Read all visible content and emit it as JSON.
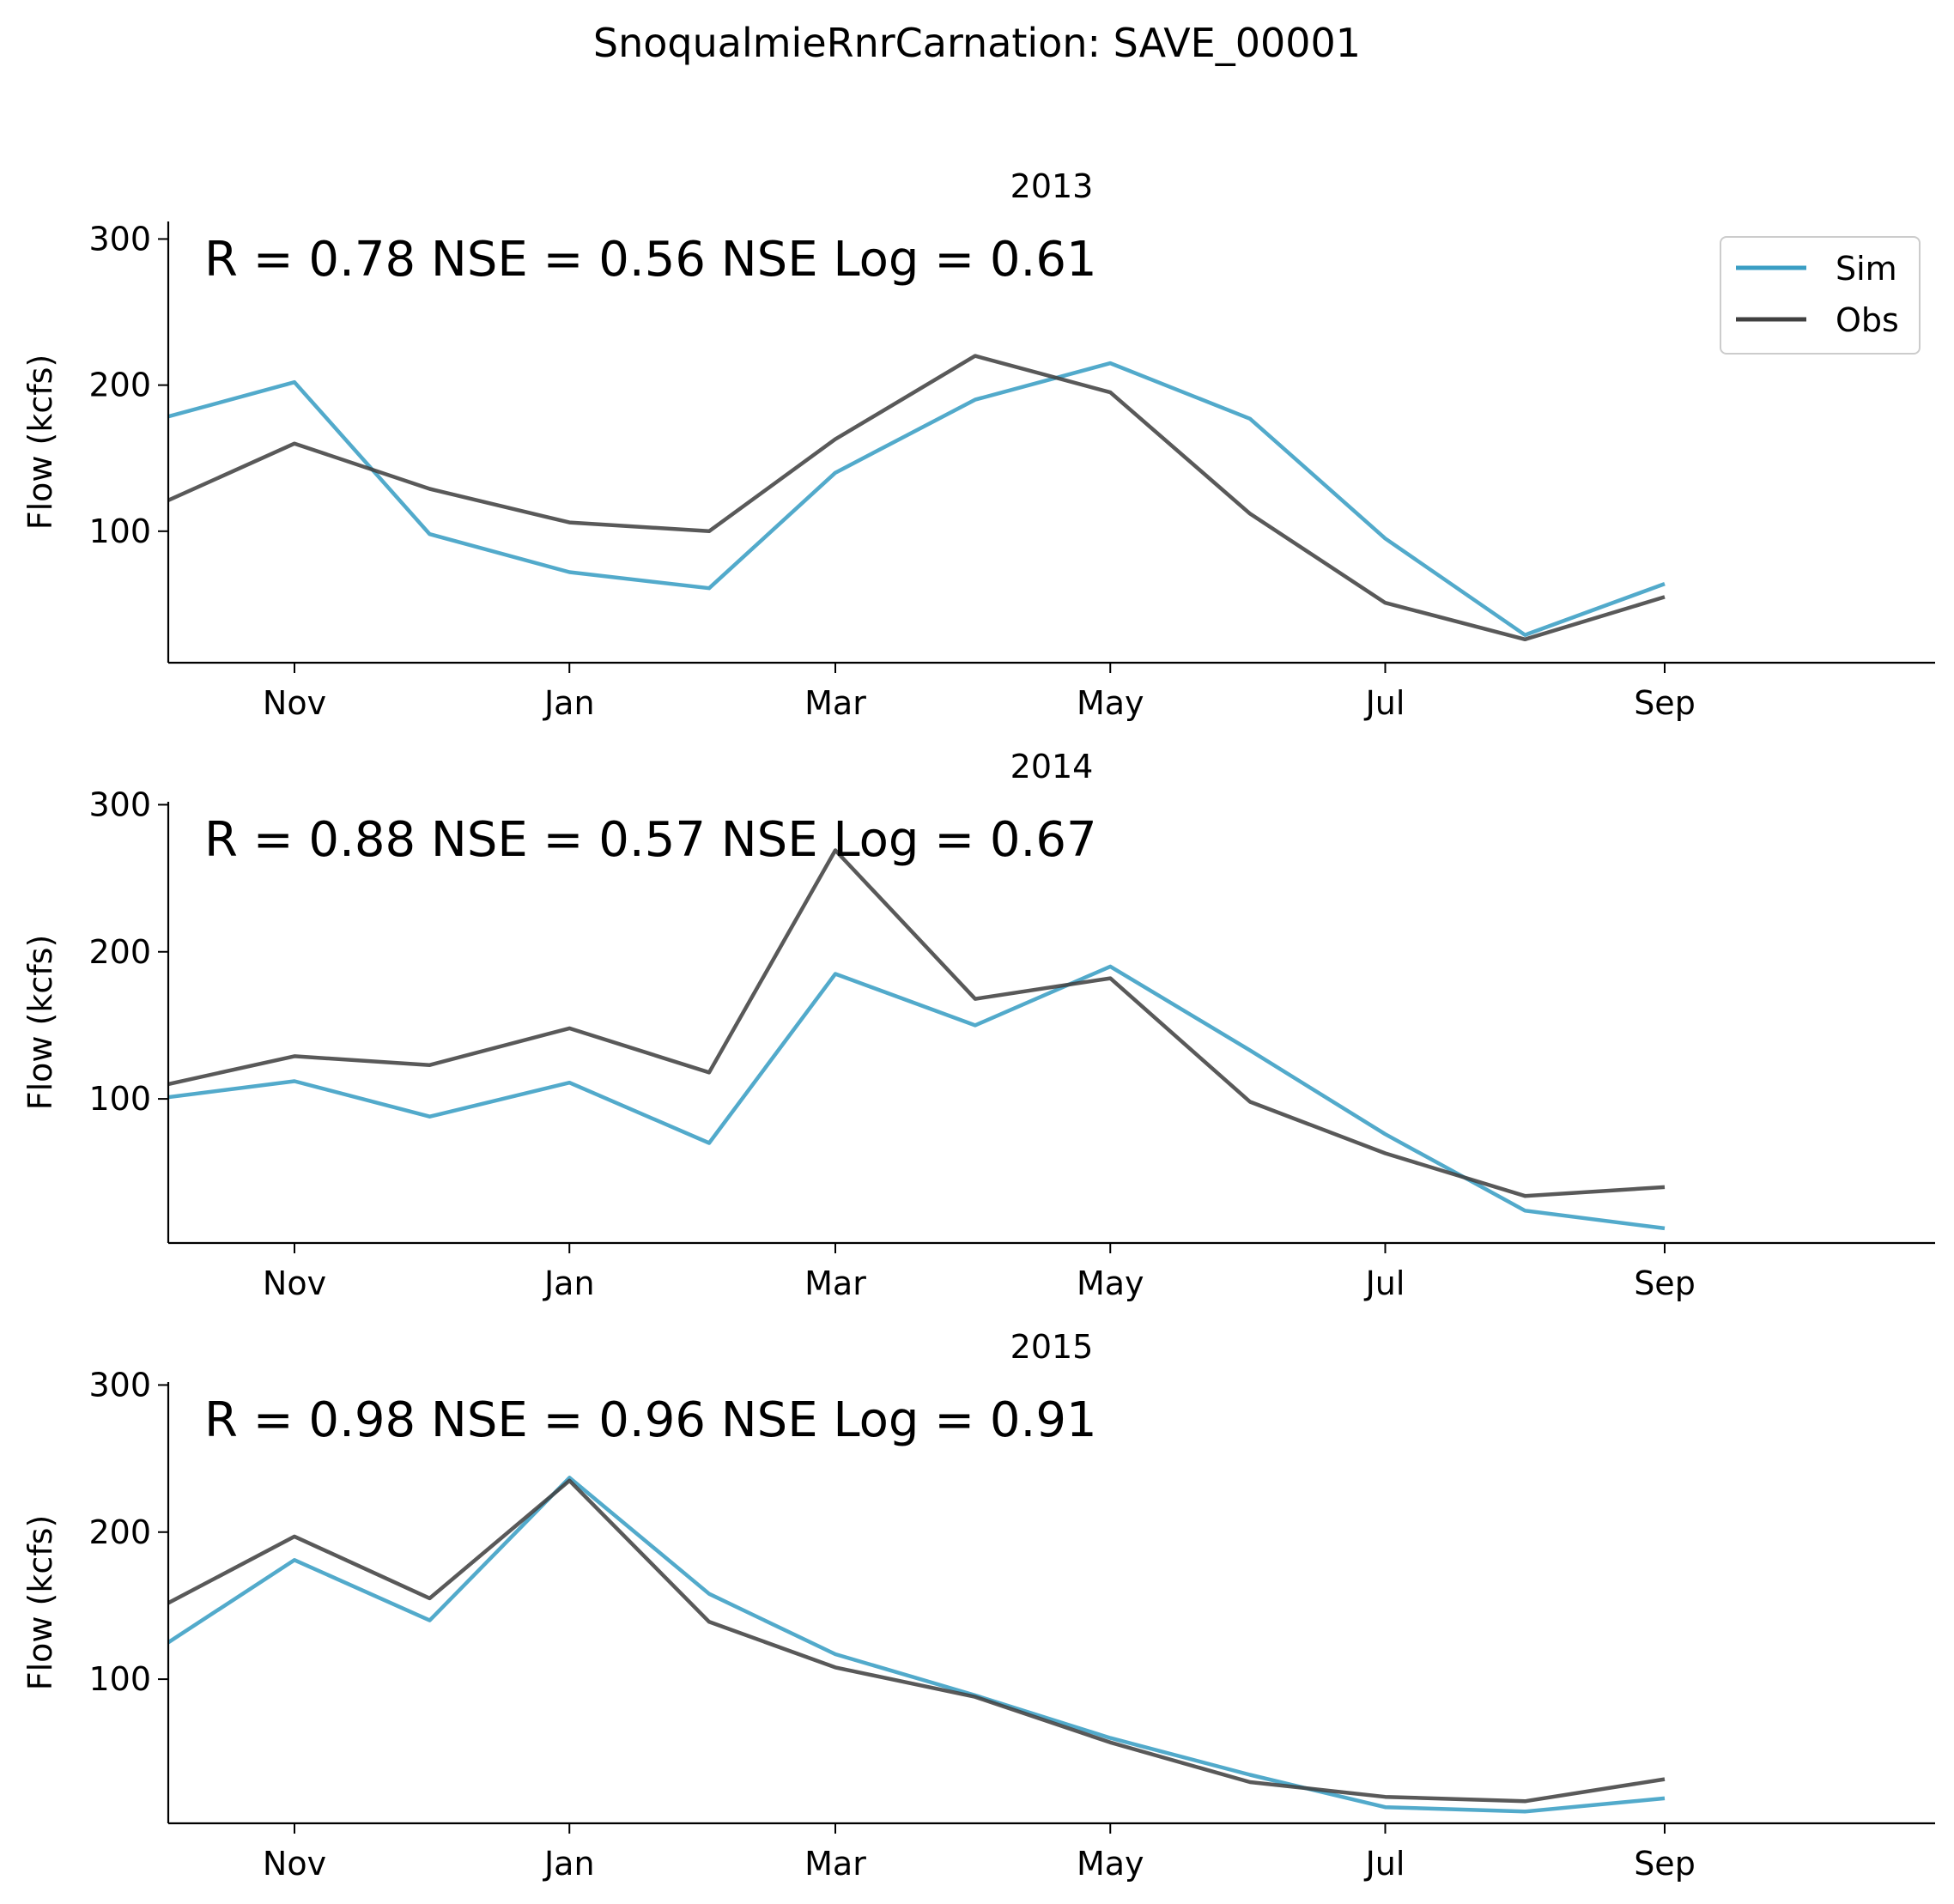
{
  "figure": {
    "suptitle": "SnoqualmieRnrCarnation: SAVE_00001"
  },
  "colors": {
    "sim": "#3a9ec4",
    "obs": "#404040"
  },
  "legend": {
    "placement": "top-right",
    "entries": [
      "Sim",
      "Obs"
    ]
  },
  "chart_data": [
    {
      "type": "line",
      "title": "2013",
      "ylabel": "Flow (kcfs)",
      "stats_text": "R = 0.78  NSE = 0.56  NSE Log = 0.61",
      "xlim": [
        "2012-10-04",
        "2013-10-31"
      ],
      "ylim": [
        10,
        312
      ],
      "yticks": [
        100,
        200,
        300
      ],
      "xticks": [
        {
          "date": "2012-11-01",
          "label": "Nov"
        },
        {
          "date": "2013-01-01",
          "label": "Jan"
        },
        {
          "date": "2013-03-01",
          "label": "Mar"
        },
        {
          "date": "2013-05-01",
          "label": "May"
        },
        {
          "date": "2013-07-01",
          "label": "Jul"
        },
        {
          "date": "2013-09-01",
          "label": "Sep"
        }
      ],
      "legend": true,
      "series": [
        {
          "name": "Sim",
          "x": [
            "2012-10-01",
            "2012-11-01",
            "2012-12-01",
            "2013-01-01",
            "2013-02-01",
            "2013-03-01",
            "2013-04-01",
            "2013-05-01",
            "2013-06-01",
            "2013-07-01",
            "2013-08-01",
            "2013-09-01"
          ],
          "y": [
            176,
            202,
            98,
            72,
            61,
            140,
            190,
            215,
            177,
            95,
            29,
            64
          ]
        },
        {
          "name": "Obs",
          "x": [
            "2012-10-01",
            "2012-11-01",
            "2012-12-01",
            "2013-01-01",
            "2013-02-01",
            "2013-03-01",
            "2013-04-01",
            "2013-05-01",
            "2013-06-01",
            "2013-07-01",
            "2013-08-01",
            "2013-09-01"
          ],
          "y": [
            117,
            160,
            129,
            106,
            100,
            163,
            220,
            195,
            112,
            51,
            26,
            55
          ]
        }
      ]
    },
    {
      "type": "line",
      "title": "2014",
      "ylabel": "Flow (kcfs)",
      "stats_text": "R = 0.88  NSE = 0.57  NSE Log = 0.67",
      "xlim": [
        "2013-10-04",
        "2014-10-31"
      ],
      "ylim": [
        2,
        302
      ],
      "yticks": [
        100,
        200,
        300
      ],
      "xticks": [
        {
          "date": "2013-11-01",
          "label": "Nov"
        },
        {
          "date": "2014-01-01",
          "label": "Jan"
        },
        {
          "date": "2014-03-01",
          "label": "Mar"
        },
        {
          "date": "2014-05-01",
          "label": "May"
        },
        {
          "date": "2014-07-01",
          "label": "Jul"
        },
        {
          "date": "2014-09-01",
          "label": "Sep"
        }
      ],
      "legend": false,
      "series": [
        {
          "name": "Sim",
          "x": [
            "2013-10-01",
            "2013-11-01",
            "2013-12-01",
            "2014-01-01",
            "2014-02-01",
            "2014-03-01",
            "2014-04-01",
            "2014-05-01",
            "2014-06-01",
            "2014-07-01",
            "2014-08-01",
            "2014-09-01"
          ],
          "y": [
            100,
            112,
            88,
            111,
            70,
            185,
            150,
            190,
            133,
            76,
            24,
            12
          ]
        },
        {
          "name": "Obs",
          "x": [
            "2013-10-01",
            "2013-11-01",
            "2013-12-01",
            "2014-01-01",
            "2014-02-01",
            "2014-03-01",
            "2014-04-01",
            "2014-05-01",
            "2014-06-01",
            "2014-07-01",
            "2014-08-01",
            "2014-09-01"
          ],
          "y": [
            108,
            129,
            123,
            148,
            118,
            269,
            168,
            182,
            98,
            63,
            34,
            40
          ]
        }
      ]
    },
    {
      "type": "line",
      "title": "2015",
      "ylabel": "Flow (kcfs)",
      "stats_text": "R = 0.98  NSE = 0.96  NSE Log = 0.91",
      "xlim": [
        "2014-10-04",
        "2015-10-31"
      ],
      "ylim": [
        2,
        302
      ],
      "yticks": [
        100,
        200,
        300
      ],
      "xticks": [
        {
          "date": "2014-11-01",
          "label": "Nov"
        },
        {
          "date": "2015-01-01",
          "label": "Jan"
        },
        {
          "date": "2015-03-01",
          "label": "Mar"
        },
        {
          "date": "2015-05-01",
          "label": "May"
        },
        {
          "date": "2015-07-01",
          "label": "Jul"
        },
        {
          "date": "2015-09-01",
          "label": "Sep"
        }
      ],
      "legend": false,
      "series": [
        {
          "name": "Sim",
          "x": [
            "2014-10-01",
            "2014-11-01",
            "2014-12-01",
            "2015-01-01",
            "2015-02-01",
            "2015-03-01",
            "2015-04-01",
            "2015-05-01",
            "2015-06-01",
            "2015-07-01",
            "2015-08-01",
            "2015-09-01"
          ],
          "y": [
            119,
            181,
            140,
            237,
            158,
            117,
            89,
            60,
            35,
            13,
            10,
            19
          ]
        },
        {
          "name": "Obs",
          "x": [
            "2014-10-01",
            "2014-11-01",
            "2014-12-01",
            "2015-01-01",
            "2015-02-01",
            "2015-03-01",
            "2015-04-01",
            "2015-05-01",
            "2015-06-01",
            "2015-07-01",
            "2015-08-01",
            "2015-09-01"
          ],
          "y": [
            147,
            197,
            155,
            235,
            139,
            108,
            88,
            57,
            30,
            20,
            17,
            32
          ]
        }
      ]
    }
  ]
}
